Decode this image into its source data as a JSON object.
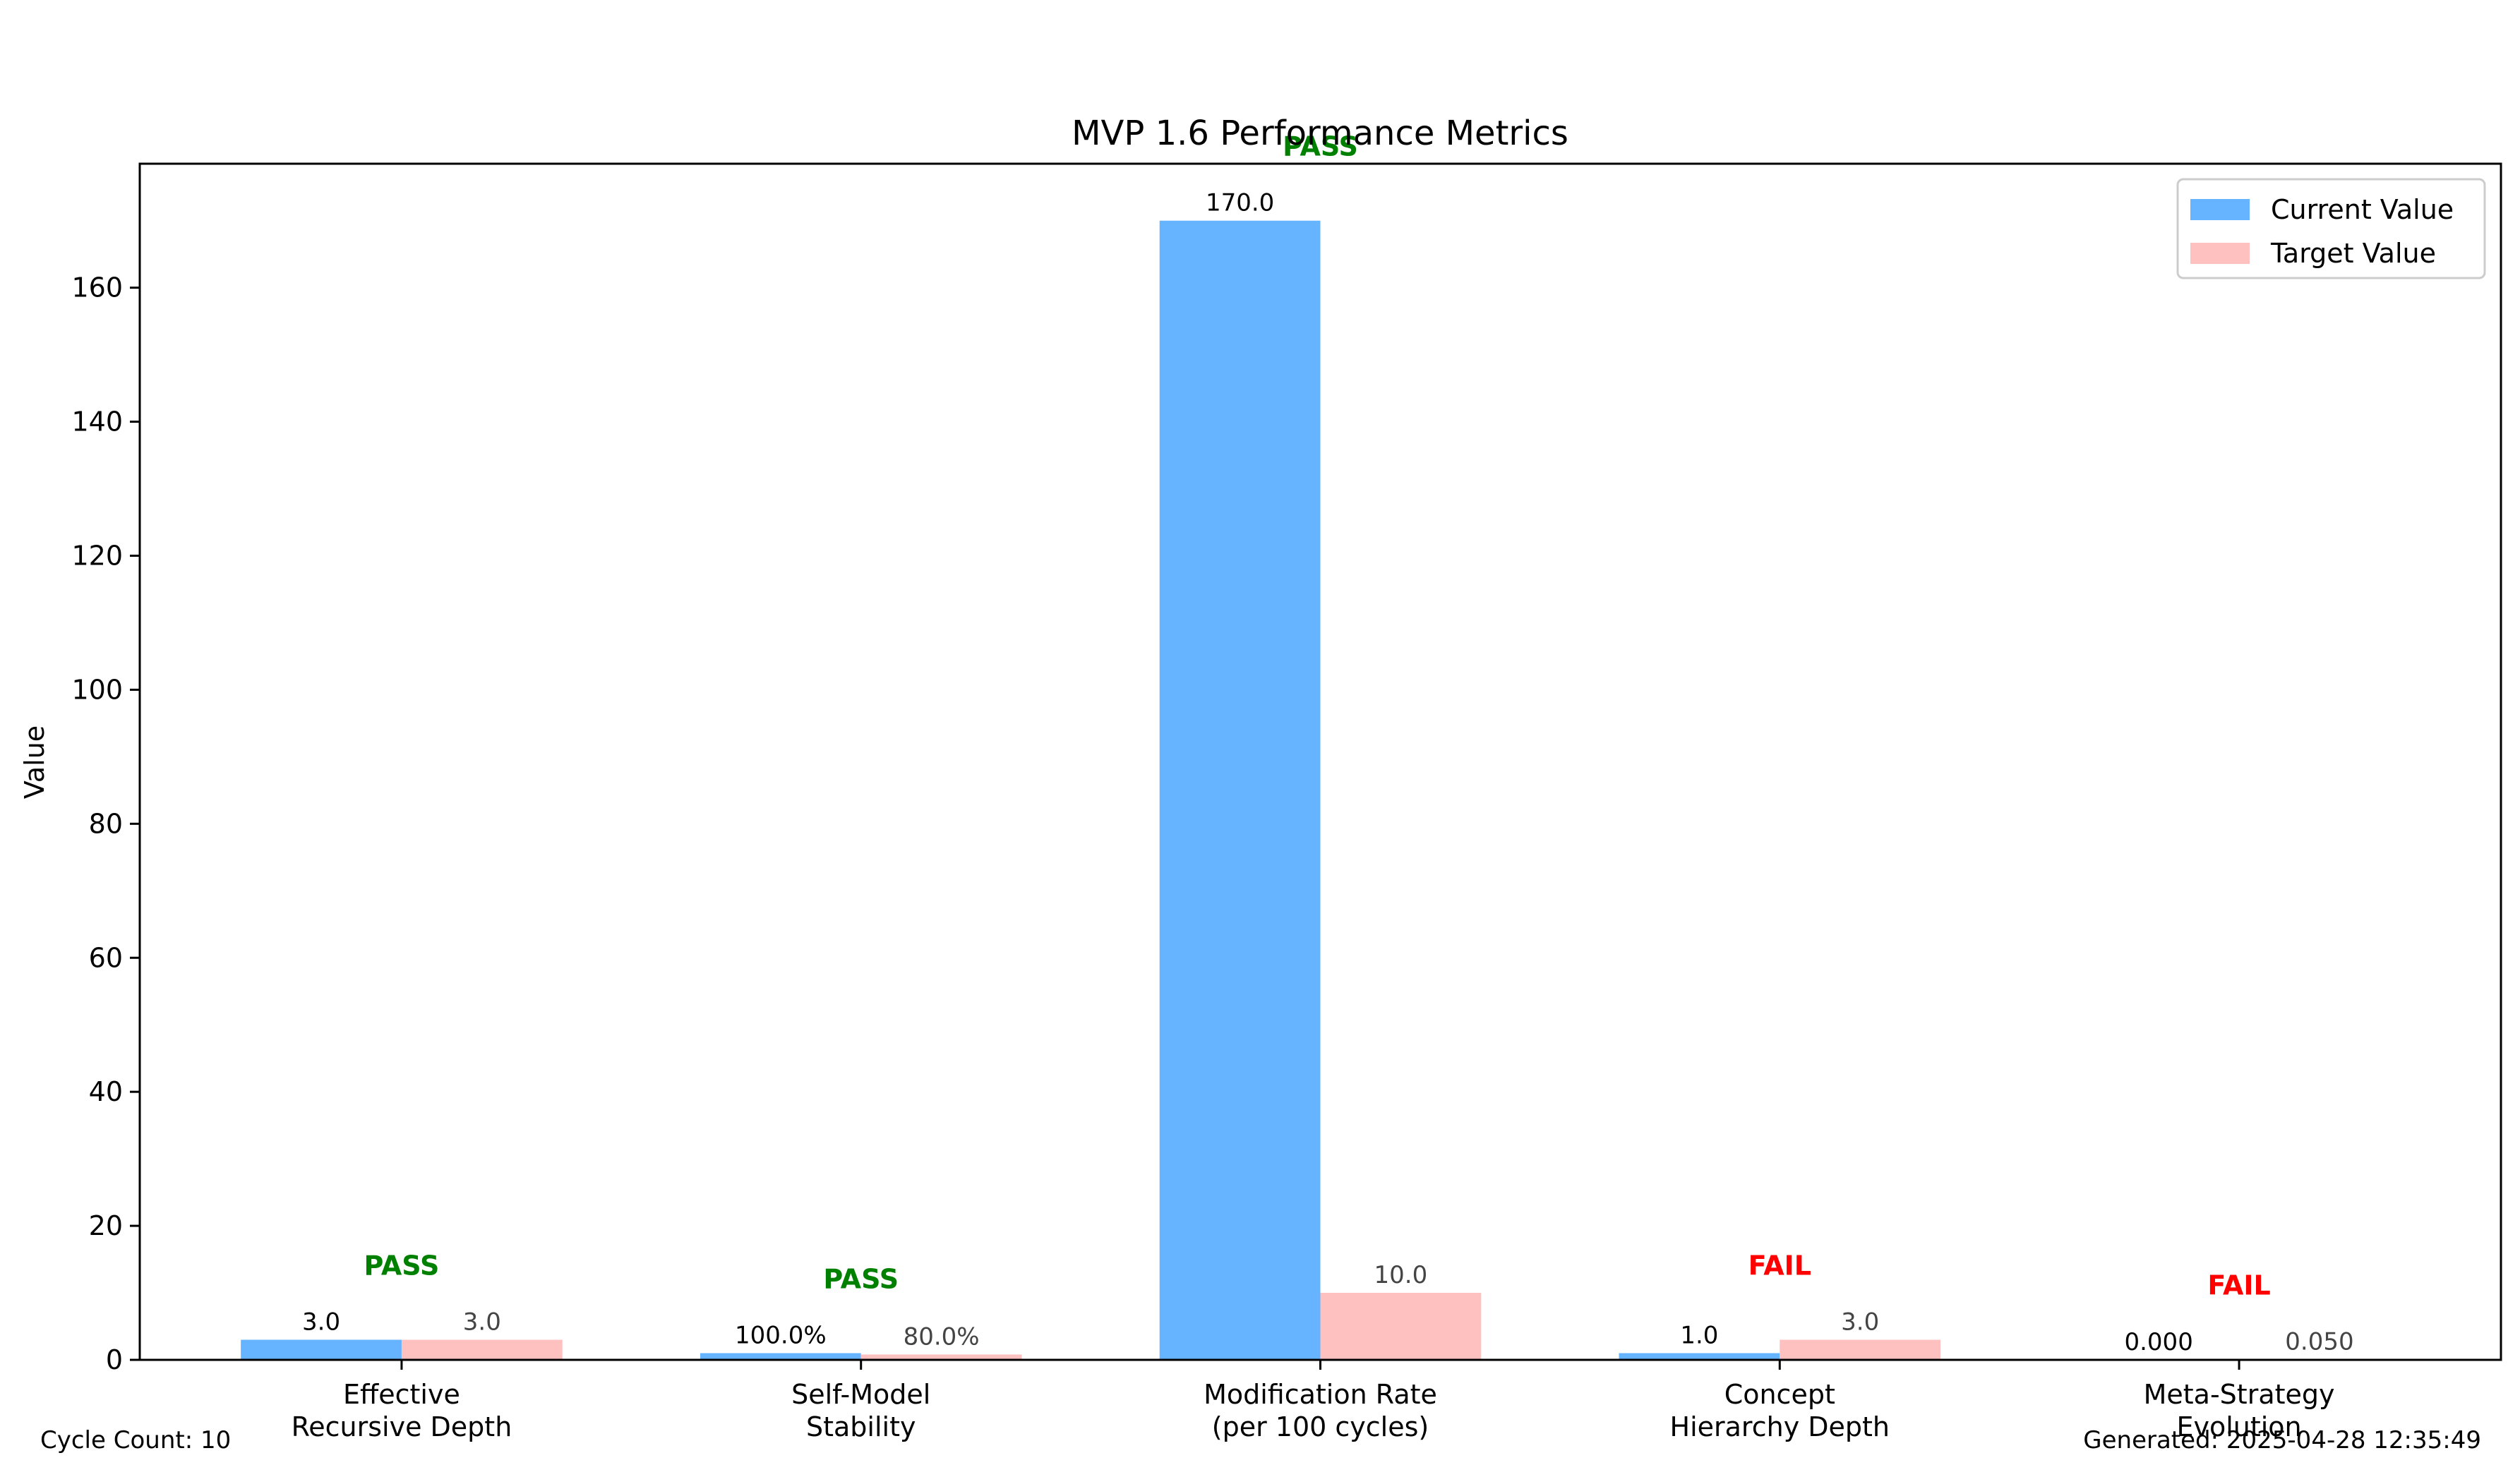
{
  "chart_data": {
    "type": "bar",
    "title": "MVP 1.6 Performance Metrics",
    "ylabel": "Value",
    "xlabel": "",
    "ylim": [
      0,
      178.5
    ],
    "yticks": [
      0,
      20,
      40,
      60,
      80,
      100,
      120,
      140,
      160
    ],
    "categories": [
      [
        "Effective",
        "Recursive Depth"
      ],
      [
        "Self-Model",
        "Stability"
      ],
      [
        "Modification Rate",
        "(per 100 cycles)"
      ],
      [
        "Concept",
        "Hierarchy Depth"
      ],
      [
        "Meta-Strategy",
        "Evolution"
      ]
    ],
    "series": [
      {
        "name": "Current Value",
        "color": "#66b3ff",
        "values": [
          3.0,
          1.0,
          170.0,
          1.0,
          0.0
        ],
        "labels": [
          "3.0",
          "100.0%",
          "170.0",
          "1.0",
          "0.000"
        ]
      },
      {
        "name": "Target Value",
        "color": "#ffc0c0",
        "values": [
          3.0,
          0.8,
          10.0,
          3.0,
          0.05
        ],
        "labels": [
          "3.0",
          "80.0%",
          "10.0",
          "3.0",
          "0.050"
        ]
      }
    ],
    "status": [
      {
        "text": "PASS",
        "color": "#008000"
      },
      {
        "text": "PASS",
        "color": "#008000"
      },
      {
        "text": "PASS",
        "color": "#008000"
      },
      {
        "text": "FAIL",
        "color": "#ff0000"
      },
      {
        "text": "FAIL",
        "color": "#ff0000"
      }
    ],
    "legend_position": "top-right",
    "grid": false
  },
  "footer": {
    "cycle_count": "Cycle Count: 10",
    "generated": "Generated: 2025-04-28 12:35:49"
  }
}
